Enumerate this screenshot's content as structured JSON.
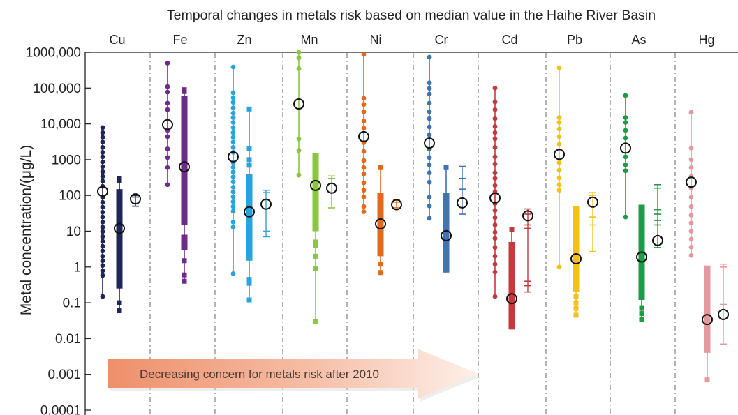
{
  "chart_data": {
    "type": "scatter",
    "title": "Temporal changes in metals risk based on median value in the Haihe River Basin",
    "ylabel": "Metal concentration/(μg/L)",
    "yscale": "log",
    "ylim": [
      0.0001,
      1000000
    ],
    "yticks": [
      {
        "value": 1000000,
        "label": "1000,000"
      },
      {
        "value": 100000,
        "label": "100,000"
      },
      {
        "value": 10000,
        "label": "10,000"
      },
      {
        "value": 1000,
        "label": "1000"
      },
      {
        "value": 100,
        "label": "100"
      },
      {
        "value": 10,
        "label": "10"
      },
      {
        "value": 1,
        "label": "1"
      },
      {
        "value": 0.1,
        "label": "0.1"
      },
      {
        "value": 0.01,
        "label": "0.01"
      },
      {
        "value": 0.001,
        "label": "0.001"
      },
      {
        "value": 0.0001,
        "label": "0.0001"
      }
    ],
    "annotation": "Decreasing concern for metals risk after 2010",
    "annotation_colors": [
      "#ee8f6a",
      "#fdf0ea"
    ],
    "metals": [
      {
        "name": "Cu",
        "color": "#1c2657",
        "dots": {
          "min": 0.15,
          "max": 7900,
          "median": 130,
          "points": [
            7900,
            5700,
            4200,
            3100,
            2200,
            1600,
            1200,
            870,
            640,
            460,
            340,
            250,
            180,
            88,
            64,
            47,
            34,
            25,
            18,
            13,
            9.8,
            7.1,
            5.2,
            3.8,
            2.8,
            2.0,
            1.5,
            1.1,
            0.79,
            0.58,
            0.15
          ]
        },
        "bars": {
          "min": 0.06,
          "max": 300,
          "median": 12,
          "bands": [
            [
              0.25,
              150
            ]
          ],
          "points": [
            300,
            260,
            0.1,
            0.06
          ]
        },
        "whiskers": {
          "min": 50,
          "max": 100,
          "median": 80,
          "ticks": [
            90
          ]
        }
      },
      {
        "name": "Fe",
        "color": "#6e2b8c",
        "dots": {
          "min": 200,
          "max": 500000,
          "median": 9500,
          "points": [
            500000,
            110000,
            77000,
            38000,
            25000,
            6600,
            4400,
            2000,
            1150,
            600,
            200
          ]
        },
        "bars": {
          "min": 0.4,
          "max": 90000,
          "median": 630,
          "bands": [
            [
              15,
              60000
            ],
            [
              3,
              8
            ]
          ],
          "points": [
            90000,
            80000,
            1.5,
            0.6,
            0.4
          ]
        }
      },
      {
        "name": "Zn",
        "color": "#29a3dc",
        "dots": {
          "min": 0.65,
          "max": 390000,
          "median": 1200,
          "points": [
            390000,
            74000,
            54000,
            40000,
            28000,
            20000,
            15000,
            11000,
            7900,
            5700,
            4200,
            3100,
            2200,
            1600,
            830,
            610,
            450,
            330,
            240,
            170,
            126,
            92,
            67,
            49,
            36,
            18,
            13,
            0.65
          ]
        },
        "bars": {
          "min": 0.12,
          "max": 26000,
          "median": 35,
          "bands": [
            [
              1.5,
              400
            ]
          ],
          "points": [
            26000,
            2000,
            1000,
            700,
            0.45,
            0.35,
            0.12
          ]
        },
        "whiskers": {
          "min": 7,
          "max": 140,
          "median": 57,
          "ticks": [
            120,
            10
          ]
        }
      },
      {
        "name": "Mn",
        "color": "#8cc540",
        "dots": {
          "min": 370,
          "max": 1000000,
          "median": 36000,
          "points": [
            1000000,
            700000,
            350000,
            3800,
            1800,
            370
          ]
        },
        "bars": {
          "min": 0.03,
          "max": 1500,
          "median": 190,
          "bands": [
            [
              10,
              1500
            ]
          ],
          "points": [
            5,
            4,
            2,
            0.9,
            0.03
          ]
        },
        "whiskers": {
          "min": 45,
          "max": 350,
          "median": 160,
          "ticks": [
            300
          ]
        }
      },
      {
        "name": "Ni",
        "color": "#e26a1a",
        "dots": {
          "min": 35,
          "max": 870000,
          "median": 4400,
          "points": [
            870000,
            52000,
            35000,
            22000,
            12000,
            7600,
            3000,
            1700,
            950,
            600,
            400,
            225,
            140,
            90,
            49,
            35
          ]
        },
        "bars": {
          "min": 0.7,
          "max": 600,
          "median": 16,
          "bands": [
            [
              2,
              120
            ]
          ],
          "points": [
            600,
            1.2,
            0.7
          ]
        },
        "whiskers": {
          "min": 45,
          "max": 75,
          "median": 55,
          "ticks": [
            65
          ]
        }
      },
      {
        "name": "Cr",
        "color": "#4172b2",
        "dots": {
          "min": 23,
          "max": 730000,
          "median": 2900,
          "points": [
            730000,
            140000,
            98000,
            68000,
            38000,
            22000,
            14000,
            8200,
            5000,
            1950,
            1150,
            720,
            430,
            235,
            89,
            51,
            23
          ]
        },
        "bars": {
          "min": 0.7,
          "max": 600,
          "median": 7.5,
          "bands": [
            [
              0.7,
              120
            ]
          ],
          "points": [
            600
          ]
        },
        "whiskers": {
          "min": 30,
          "max": 650,
          "median": 62,
          "ticks": [
            300,
            150
          ]
        }
      },
      {
        "name": "Cd",
        "color": "#c13a3c",
        "dots": {
          "min": 0.15,
          "max": 100000,
          "median": 85,
          "points": [
            100000,
            41000,
            25000,
            14000,
            8500,
            5700,
            3800,
            2200,
            1200,
            760,
            430,
            300,
            190,
            126,
            59,
            38,
            24,
            15,
            9.4,
            6.3,
            3.5,
            2.0,
            1.2,
            0.72,
            0.15
          ]
        },
        "bars": {
          "min": 0.018,
          "max": 11,
          "median": 0.13,
          "bands": [
            [
              0.018,
              5
            ]
          ],
          "points": [
            11
          ]
        },
        "whiskers": {
          "min": 0.2,
          "max": 42,
          "median": 27,
          "ticks": [
            30,
            15,
            12,
            0.4,
            0.3
          ]
        }
      },
      {
        "name": "Pb",
        "color": "#f4c11b",
        "dots": {
          "min": 1.0,
          "max": 370000,
          "median": 1400,
          "points": [
            370000,
            15000,
            11000,
            7200,
            4400,
            2700,
            830,
            510,
            310,
            200,
            140,
            1.0
          ]
        },
        "bars": {
          "min": 0.045,
          "max": 50,
          "median": 1.7,
          "bands": [
            [
              0.2,
              50
            ]
          ],
          "points": [
            0.15,
            0.1,
            0.07,
            0.045
          ]
        },
        "whiskers": {
          "min": 2.7,
          "max": 120,
          "median": 65,
          "ticks": [
            100,
            25,
            15
          ]
        }
      },
      {
        "name": "As",
        "color": "#1e9b47",
        "dots": {
          "min": 25,
          "max": 62000,
          "median": 2100,
          "points": [
            62000,
            15000,
            11000,
            6600,
            4000,
            1200,
            720,
            490,
            25
          ]
        },
        "bars": {
          "min": 0.035,
          "max": 55,
          "median": 1.9,
          "bands": [
            [
              0.12,
              55
            ]
          ],
          "points": [
            0.07,
            0.05,
            0.035
          ]
        },
        "whiskers": {
          "min": 3.5,
          "max": 200,
          "median": 5.5,
          "ticks": [
            160,
            40,
            30,
            20,
            15
          ]
        }
      },
      {
        "name": "Hg",
        "color": "#e3999e",
        "dots": {
          "min": 2.1,
          "max": 21000,
          "median": 235,
          "points": [
            21000,
            2100,
            1000,
            600,
            340,
            160,
            89,
            49,
            28,
            17,
            10,
            6.0,
            3.6,
            2.1
          ]
        },
        "bars": {
          "min": 0.0007,
          "max": 1.1,
          "median": 0.034,
          "bands": [
            [
              0.004,
              1.1
            ]
          ],
          "points": [
            0.0007
          ]
        },
        "whiskers": {
          "min": 0.007,
          "max": 1.2,
          "median": 0.047,
          "ticks": [
            1.0,
            0.09
          ]
        }
      }
    ]
  }
}
